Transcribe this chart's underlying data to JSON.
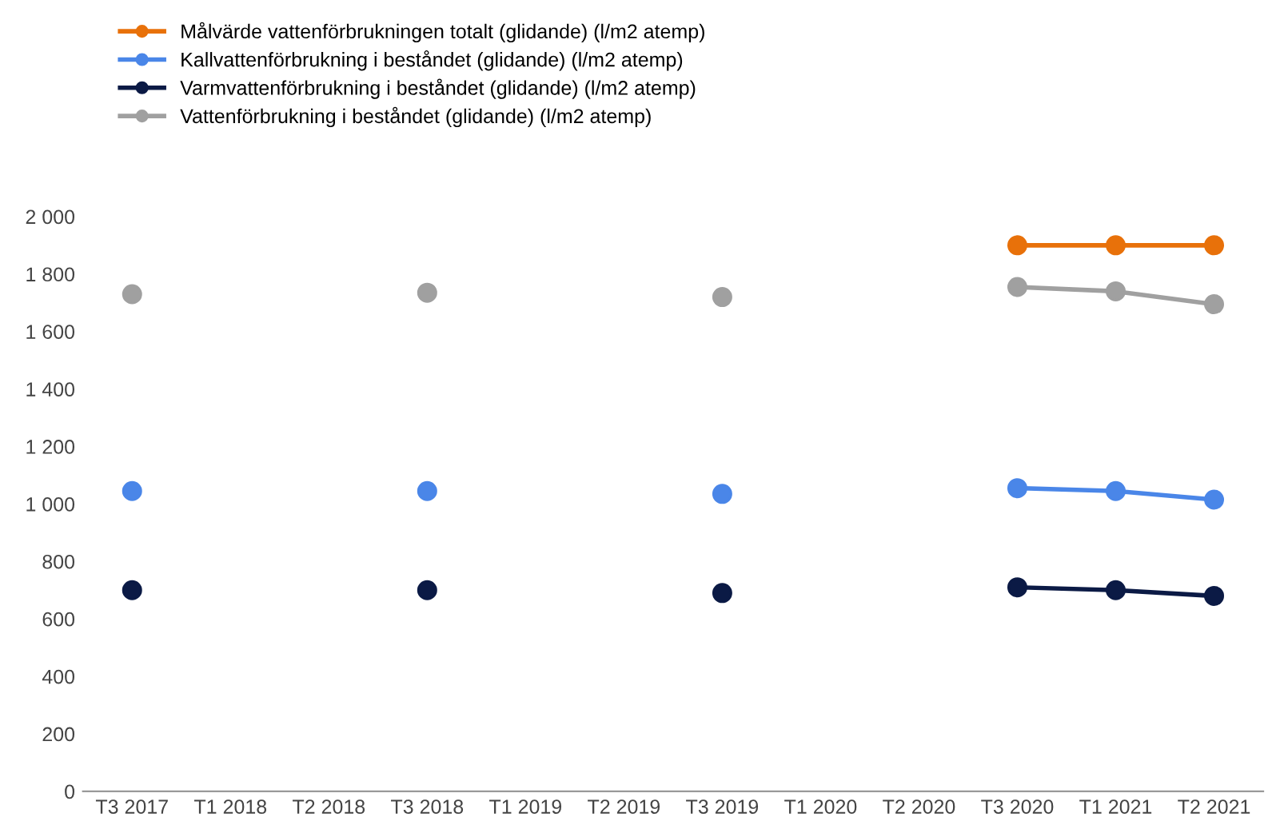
{
  "chart_data": {
    "type": "line",
    "categories": [
      "T3 2017",
      "T1 2018",
      "T2 2018",
      "T3 2018",
      "T1 2019",
      "T2 2019",
      "T3 2019",
      "T1 2020",
      "T2 2020",
      "T3 2020",
      "T1 2021",
      "T2 2021"
    ],
    "series": [
      {
        "name": "Målvärde vattenförbrukningen totalt (glidande) (l/m2 atemp)",
        "color": "#e8710a",
        "values": [
          null,
          null,
          null,
          null,
          null,
          null,
          null,
          null,
          null,
          1900,
          1900,
          1900
        ]
      },
      {
        "name": "Kallvattenförbrukning i beståndet (glidande) (l/m2 atemp)",
        "color": "#4a86e8",
        "values": [
          1045,
          null,
          null,
          1045,
          null,
          null,
          1035,
          null,
          null,
          1055,
          1045,
          1015
        ]
      },
      {
        "name": "Varmvattenförbrukning i beståndet (glidande) (l/m2 atemp)",
        "color": "#0b1a45",
        "values": [
          700,
          null,
          null,
          700,
          null,
          null,
          690,
          null,
          null,
          710,
          700,
          680
        ]
      },
      {
        "name": "Vattenförbrukning i beståndet (glidande) (l/m2 atemp)",
        "color": "#a0a0a0",
        "values": [
          1730,
          null,
          null,
          1735,
          null,
          null,
          1720,
          null,
          null,
          1755,
          1740,
          1695
        ]
      }
    ],
    "ylim": [
      0,
      2000
    ],
    "yticks": [
      0,
      200,
      400,
      600,
      800,
      {
        "value": 1000,
        "label": "1 000"
      },
      {
        "value": 1200,
        "label": "1 200"
      },
      {
        "value": 1400,
        "label": "1 400"
      },
      {
        "value": 1600,
        "label": "1 600"
      },
      {
        "value": 1800,
        "label": "1 800"
      },
      {
        "value": 2000,
        "label": "2 000"
      }
    ],
    "grid": false,
    "legend": "top left",
    "marker": "circle",
    "line_style": "solid"
  }
}
